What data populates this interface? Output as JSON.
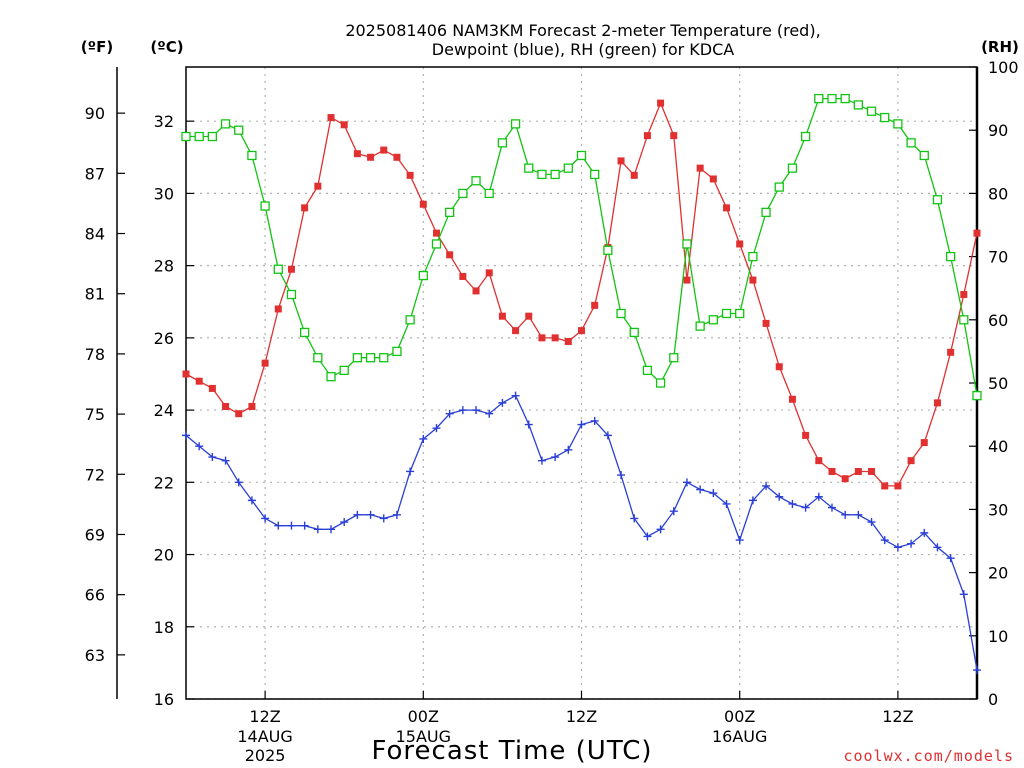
{
  "title": {
    "line1": "2025081406 NAM3KM Forecast 2-meter Temperature (red),",
    "line2": "Dewpoint (blue), RH (green) for KDCA"
  },
  "axis_units": {
    "fahrenheit": "(ºF)",
    "celsius": "(ºC)",
    "rh": "(RH)"
  },
  "xlabel": "Forecast Time (UTC)",
  "credit": "coolwx.com/models",
  "colors": {
    "temp": "#e03030",
    "dew": "#2a3fd6",
    "rh": "#12c412",
    "grid": "#b0b0b0"
  },
  "chart_data": {
    "type": "line",
    "x_unit": "forecast hour (0 = 2025-08-14 06Z)",
    "x_range": [
      0,
      60
    ],
    "celsius_range": [
      16,
      33.5
    ],
    "fahrenheit_range": [
      60.8,
      92.3
    ],
    "rh_range": [
      0,
      100
    ],
    "celsius_ticks": [
      "16",
      "18",
      "20",
      "22",
      "24",
      "26",
      "28",
      "30",
      "32"
    ],
    "fahrenheit_ticks": [
      "63",
      "66",
      "69",
      "72",
      "75",
      "78",
      "81",
      "84",
      "87",
      "90"
    ],
    "rh_ticks": [
      "0",
      "10",
      "20",
      "30",
      "40",
      "50",
      "60",
      "70",
      "80",
      "90",
      "100"
    ],
    "x_ticks": [
      {
        "hour": 6,
        "label": "12Z",
        "date": "14AUG",
        "year": "2025"
      },
      {
        "hour": 18,
        "label": "00Z",
        "date": "15AUG",
        "year": ""
      },
      {
        "hour": 30,
        "label": "12Z",
        "date": "",
        "year": ""
      },
      {
        "hour": 42,
        "label": "00Z",
        "date": "16AUG",
        "year": ""
      },
      {
        "hour": 54,
        "label": "12Z",
        "date": "",
        "year": ""
      }
    ],
    "grid": true,
    "series": [
      {
        "name": "Temperature",
        "unit": "C",
        "marker": "filled-square",
        "values": [
          25.0,
          24.8,
          24.6,
          24.1,
          23.9,
          24.1,
          25.3,
          26.8,
          27.9,
          29.6,
          30.2,
          32.1,
          31.9,
          31.1,
          31.0,
          31.2,
          31.0,
          30.5,
          29.7,
          28.9,
          28.3,
          27.7,
          27.3,
          27.8,
          26.6,
          26.2,
          26.6,
          26.0,
          26.0,
          25.9,
          26.2,
          26.9,
          28.5,
          30.9,
          30.5,
          31.6,
          32.5,
          31.6,
          27.6,
          30.7,
          30.4,
          29.6,
          28.6,
          27.6,
          26.4,
          25.2,
          24.3,
          23.3,
          22.6,
          22.3,
          22.1,
          22.3,
          22.3,
          21.9,
          21.9,
          22.6,
          23.1,
          24.2,
          25.6,
          27.2,
          28.9
        ]
      },
      {
        "name": "Dewpoint",
        "unit": "C",
        "marker": "plus",
        "values": [
          23.3,
          23.0,
          22.7,
          22.6,
          22.0,
          21.5,
          21.0,
          20.8,
          20.8,
          20.8,
          20.7,
          20.7,
          20.9,
          21.1,
          21.1,
          21.0,
          21.1,
          22.3,
          23.2,
          23.5,
          23.9,
          24.0,
          24.0,
          23.9,
          24.2,
          24.4,
          23.6,
          22.6,
          22.7,
          22.9,
          23.6,
          23.7,
          23.3,
          22.2,
          21.0,
          20.5,
          20.7,
          21.2,
          22.0,
          21.8,
          21.7,
          21.4,
          20.4,
          21.5,
          21.9,
          21.6,
          21.4,
          21.3,
          21.6,
          21.3,
          21.1,
          21.1,
          20.9,
          20.4,
          20.2,
          20.3,
          20.6,
          20.2,
          19.9,
          18.9,
          16.8
        ]
      },
      {
        "name": "RH",
        "unit": "%",
        "marker": "open-square",
        "values": [
          89,
          89,
          89,
          91,
          90,
          86,
          78,
          68,
          64,
          58,
          54,
          51,
          52,
          54,
          54,
          54,
          55,
          60,
          67,
          72,
          77,
          80,
          82,
          80,
          88,
          91,
          84,
          83,
          83,
          84,
          86,
          83,
          71,
          61,
          58,
          52,
          50,
          54,
          72,
          59,
          60,
          61,
          61,
          70,
          77,
          81,
          84,
          89,
          95,
          95,
          95,
          94,
          93,
          92,
          91,
          88,
          86,
          79,
          70,
          60,
          48
        ]
      }
    ]
  }
}
